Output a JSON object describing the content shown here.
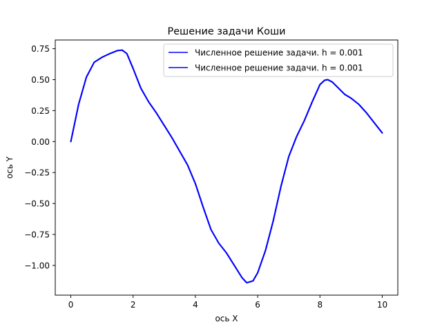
{
  "chart_data": {
    "type": "line",
    "title": "Решение задачи Коши",
    "xlabel": "ось X",
    "ylabel": "ось Y",
    "xlim": [
      -0.5,
      10.5
    ],
    "ylim": [
      -1.24,
      0.82
    ],
    "xticks": [
      0,
      2,
      4,
      6,
      8,
      10
    ],
    "xtick_labels": [
      "0",
      "2",
      "4",
      "6",
      "8",
      "10"
    ],
    "yticks": [
      0.75,
      0.5,
      0.25,
      0.0,
      -0.25,
      -0.5,
      -0.75,
      -1.0
    ],
    "ytick_labels": [
      "0.75",
      "0.50",
      "0.25",
      "0.00",
      "−0.25",
      "−0.50",
      "−0.75",
      "−1.00"
    ],
    "grid": false,
    "legend_position": "top-right",
    "series": [
      {
        "name": "Численное решение задачи. h = 0.001",
        "color": "#0000ff",
        "x": [
          0,
          0.25,
          0.5,
          0.75,
          1.0,
          1.25,
          1.5,
          1.65,
          1.8,
          2.0,
          2.25,
          2.5,
          2.75,
          3.0,
          3.25,
          3.5,
          3.75,
          4.0,
          4.25,
          4.5,
          4.75,
          5.0,
          5.25,
          5.5,
          5.65,
          5.85,
          6.0,
          6.25,
          6.5,
          6.75,
          7.0,
          7.25,
          7.5,
          7.75,
          8.0,
          8.15,
          8.25,
          8.4,
          8.6,
          8.8,
          9.0,
          9.25,
          9.5,
          9.75,
          10.0
        ],
        "y": [
          0.0,
          0.3,
          0.52,
          0.64,
          0.68,
          0.71,
          0.735,
          0.738,
          0.71,
          0.59,
          0.43,
          0.32,
          0.23,
          0.13,
          0.03,
          -0.08,
          -0.19,
          -0.34,
          -0.53,
          -0.71,
          -0.82,
          -0.9,
          -1.0,
          -1.1,
          -1.14,
          -1.125,
          -1.06,
          -0.88,
          -0.64,
          -0.36,
          -0.12,
          0.04,
          0.17,
          0.32,
          0.46,
          0.495,
          0.5,
          0.48,
          0.43,
          0.38,
          0.35,
          0.3,
          0.23,
          0.15,
          0.07
        ]
      },
      {
        "name": "Численное решение задачи. h = 0.001",
        "color": "#0000ff",
        "x": [
          0,
          0.25,
          0.5,
          0.75,
          1.0,
          1.25,
          1.5,
          1.65,
          1.8,
          2.0,
          2.25,
          2.5,
          2.75,
          3.0,
          3.25,
          3.5,
          3.75,
          4.0,
          4.25,
          4.5,
          4.75,
          5.0,
          5.25,
          5.5,
          5.65,
          5.85,
          6.0,
          6.25,
          6.5,
          6.75,
          7.0,
          7.25,
          7.5,
          7.75,
          8.0,
          8.15,
          8.25,
          8.4,
          8.6,
          8.8,
          9.0,
          9.25,
          9.5,
          9.75,
          10.0
        ],
        "y": [
          0.0,
          0.3,
          0.52,
          0.64,
          0.68,
          0.71,
          0.735,
          0.738,
          0.71,
          0.59,
          0.43,
          0.32,
          0.23,
          0.13,
          0.03,
          -0.08,
          -0.19,
          -0.34,
          -0.53,
          -0.71,
          -0.82,
          -0.9,
          -1.0,
          -1.1,
          -1.14,
          -1.125,
          -1.06,
          -0.88,
          -0.64,
          -0.36,
          -0.12,
          0.04,
          0.17,
          0.32,
          0.46,
          0.495,
          0.5,
          0.48,
          0.43,
          0.38,
          0.35,
          0.3,
          0.23,
          0.15,
          0.07
        ]
      }
    ]
  }
}
